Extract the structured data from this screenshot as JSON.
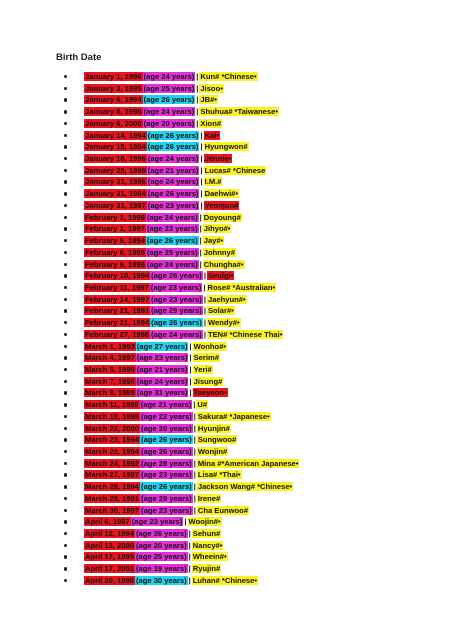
{
  "heading": "Birth Date",
  "colors": {
    "red": "#e8141e",
    "magenta": "#e22fd6",
    "cyan": "#1fd3ee",
    "yellow": "#fbf31f"
  },
  "entries": [
    {
      "date": "January 1, 1996",
      "date_bg": "#e8141e",
      "age": "(age 24 years)",
      "age_bg": "#e22fd6",
      "name": "Kun# *Chinese•",
      "name_bg": "#fbf31f"
    },
    {
      "date": "January 3, 1995",
      "date_bg": "#e8141e",
      "age": "(age 25 years)",
      "age_bg": "#e22fd6",
      "name": "Jisoo•",
      "name_bg": "#fbf31f"
    },
    {
      "date": "January 6, 1994",
      "date_bg": "#e8141e",
      "age": "(age 26 years)",
      "age_bg": "#1fd3ee",
      "name": "JB#•",
      "name_bg": "#fbf31f"
    },
    {
      "date": "January 6, 1996",
      "date_bg": "#e8141e",
      "age": "(age 24 years)",
      "age_bg": "#e22fd6",
      "name": "Shuhua# *Taiwanese•",
      "name_bg": "#fbf31f"
    },
    {
      "date": "January 6, 2000",
      "date_bg": "#e8141e",
      "age": "(age 20 years)",
      "age_bg": "#e22fd6",
      "name": "Xion#",
      "name_bg": "#fbf31f"
    },
    {
      "date": "January 14, 1994",
      "date_bg": "#e8141e",
      "age": "(age 26 years)",
      "age_bg": "#1fd3ee",
      "name": "Kai•",
      "name_bg": "#e8141e"
    },
    {
      "date": "January 15, 1994",
      "date_bg": "#e8141e",
      "age": "(age 26 years)",
      "age_bg": "#1fd3ee",
      "name": "Hyungwon#",
      "name_bg": "#fbf31f"
    },
    {
      "date": "January 16, 1996",
      "date_bg": "#e8141e",
      "age": "(age 24 years)",
      "age_bg": "#e22fd6",
      "name": "Jennie•",
      "name_bg": "#e8141e"
    },
    {
      "date": "January 25, 1999",
      "date_bg": "#e8141e",
      "age": "(age 21 years)",
      "age_bg": "#e22fd6",
      "name": "Lucas# *Chinese",
      "name_bg": "#fbf31f"
    },
    {
      "date": "January 31, 1996",
      "date_bg": "#e8141e",
      "age": "(age 24 years)",
      "age_bg": "#e22fd6",
      "name": "I.M.#",
      "name_bg": "#fbf31f"
    },
    {
      "date": "January 31, 1994",
      "date_bg": "#e8141e",
      "age": "(age 26 years)",
      "age_bg": "#e22fd6",
      "name": "Daehwi#•",
      "name_bg": "#fbf31f"
    },
    {
      "date": "January 31, 1997",
      "date_bg": "#e8141e",
      "age": "(age 23 years)",
      "age_bg": "#e22fd6",
      "name": "Yeonjun#",
      "name_bg": "#e8141e"
    },
    {
      "date": "February 1, 1996",
      "date_bg": "#e8141e",
      "age": "(age 24 years)",
      "age_bg": "#e22fd6",
      "name": "Doyoung#",
      "name_bg": "#fbf31f"
    },
    {
      "date": "February 1, 1997",
      "date_bg": "#e8141e",
      "age": "(age 23 years)",
      "age_bg": "#e22fd6",
      "name": "Jihyo#•",
      "name_bg": "#fbf31f"
    },
    {
      "date": "February 6, 1994",
      "date_bg": "#e8141e",
      "age": "(age 26 years)",
      "age_bg": "#1fd3ee",
      "name": "Jay#•",
      "name_bg": "#fbf31f"
    },
    {
      "date": "February 6, 1995",
      "date_bg": "#e8141e",
      "age": "(age 25 years)",
      "age_bg": "#e22fd6",
      "name": "Johnny#",
      "name_bg": "#fbf31f"
    },
    {
      "date": "February 9, 1996",
      "date_bg": "#e8141e",
      "age": "(age 24 years)",
      "age_bg": "#e22fd6",
      "name": "Chungha#•",
      "name_bg": "#fbf31f"
    },
    {
      "date": "February 10, 1994",
      "date_bg": "#e8141e",
      "age": "(age 26 years)",
      "age_bg": "#e22fd6",
      "name": "Seulgi•",
      "name_bg": "#e8141e"
    },
    {
      "date": "February 11, 1997",
      "date_bg": "#e8141e",
      "age": "(age 23 years)",
      "age_bg": "#e22fd6",
      "name": "Rose# *Australian•",
      "name_bg": "#fbf31f"
    },
    {
      "date": "February 14, 1997",
      "date_bg": "#e8141e",
      "age": "(age 23 years)",
      "age_bg": "#e22fd6",
      "name": "Jaehyun#•",
      "name_bg": "#fbf31f"
    },
    {
      "date": "February 21, 1991",
      "date_bg": "#e8141e",
      "age": "(age 29 years)",
      "age_bg": "#e22fd6",
      "name": "Solar#•",
      "name_bg": "#fbf31f"
    },
    {
      "date": "February 21, 1994",
      "date_bg": "#e8141e",
      "age": "(age 26 years)",
      "age_bg": "#1fd3ee",
      "name": "Wendy#•",
      "name_bg": "#fbf31f"
    },
    {
      "date": "February 27, 1996",
      "date_bg": "#e8141e",
      "age": "(age 24 years)",
      "age_bg": "#e22fd6",
      "name": "TEN# *Chinese Thai•",
      "name_bg": "#fbf31f"
    },
    {
      "date": "March 1, 1993",
      "date_bg": "#e8141e",
      "age": "(age 27 years)",
      "age_bg": "#1fd3ee",
      "name": "Wonho#•",
      "name_bg": "#fbf31f"
    },
    {
      "date": "March 4, 1997",
      "date_bg": "#e8141e",
      "age": "(age 23 years)",
      "age_bg": "#e22fd6",
      "name": "Serim#",
      "name_bg": "#fbf31f"
    },
    {
      "date": "March 5, 1999",
      "date_bg": "#e8141e",
      "age": "(age 21 years)",
      "age_bg": "#e22fd6",
      "name": "Yeri#",
      "name_bg": "#fbf31f"
    },
    {
      "date": "March 7, 1996",
      "date_bg": "#e8141e",
      "age": "(age 24 years)",
      "age_bg": "#e22fd6",
      "name": "Jisung#",
      "name_bg": "#fbf31f"
    },
    {
      "date": "March 9, 1989",
      "date_bg": "#e8141e",
      "age": "(age 31 years)",
      "age_bg": "#e22fd6",
      "name": "Taeyeon•",
      "name_bg": "#e8141e"
    },
    {
      "date": "March 11, 1999",
      "date_bg": "#e8141e",
      "age": "(age 21 years)",
      "age_bg": "#e22fd6",
      "name": "U#",
      "name_bg": "#fbf31f"
    },
    {
      "date": "March 19, 1998",
      "date_bg": "#e8141e",
      "age": "(age 22 years)",
      "age_bg": "#e22fd6",
      "name": "Sakura# *Japanese•",
      "name_bg": "#fbf31f"
    },
    {
      "date": "March 22, 2000",
      "date_bg": "#e8141e",
      "age": "(age 20 years)",
      "age_bg": "#e22fd6",
      "name": "Hyunjin#",
      "name_bg": "#fbf31f"
    },
    {
      "date": "March 23, 1994",
      "date_bg": "#e8141e",
      "age": "(age 26 years)",
      "age_bg": "#1fd3ee",
      "name": "Sungwoo#",
      "name_bg": "#fbf31f"
    },
    {
      "date": "March 22, 1994",
      "date_bg": "#e8141e",
      "age": "(age 26 years)",
      "age_bg": "#e22fd6",
      "name": "Wonjin#",
      "name_bg": "#fbf31f"
    },
    {
      "date": "March 24, 1992",
      "date_bg": "#e8141e",
      "age": "(age 28 years)",
      "age_bg": "#e22fd6",
      "name": "Mina #*American Japanese•",
      "name_bg": "#fbf31f"
    },
    {
      "date": "March 27, 1997",
      "date_bg": "#e8141e",
      "age": "(age 23 years)",
      "age_bg": "#e22fd6",
      "name": "Lisa# *Thai•",
      "name_bg": "#fbf31f"
    },
    {
      "date": "March 28, 1994",
      "date_bg": "#e8141e",
      "age": "(age 26 years)",
      "age_bg": "#1fd3ee",
      "name": "Jackson Wang# *Chinese•",
      "name_bg": "#fbf31f"
    },
    {
      "date": "March 29, 1991",
      "date_bg": "#e8141e",
      "age": "(age 29 years)",
      "age_bg": "#e22fd6",
      "name": "Irene#",
      "name_bg": "#fbf31f"
    },
    {
      "date": "March 30, 1997",
      "date_bg": "#e8141e",
      "age": "(age 23 years)",
      "age_bg": "#e22fd6",
      "name": "Cha Eunwoo#",
      "name_bg": "#fbf31f"
    },
    {
      "date": "April 6, 1997",
      "date_bg": "#e8141e",
      "age": "(age 23 years)",
      "age_bg": "#e22fd6",
      "name": "Woojin#•",
      "name_bg": "#fbf31f"
    },
    {
      "date": "April 12, 1994",
      "date_bg": "#e8141e",
      "age": "(age 26 years)",
      "age_bg": "#e22fd6",
      "name": "Sehun#",
      "name_bg": "#fbf31f"
    },
    {
      "date": "April 13, 2000",
      "date_bg": "#e8141e",
      "age": "(age 20 years)",
      "age_bg": "#e22fd6",
      "name": "Nancy#•",
      "name_bg": "#fbf31f"
    },
    {
      "date": "April 17, 1995",
      "date_bg": "#e8141e",
      "age": "(age 25 years)",
      "age_bg": "#e22fd6",
      "name": "Wheein#•",
      "name_bg": "#fbf31f"
    },
    {
      "date": "April 17, 2001",
      "date_bg": "#e8141e",
      "age": "(age 19 years)",
      "age_bg": "#e22fd6",
      "name": "Ryujin#",
      "name_bg": "#fbf31f"
    },
    {
      "date": "April 20, 1990",
      "date_bg": "#e8141e",
      "age": "(age 30 years)",
      "age_bg": "#1fd3ee",
      "name": "Luhan# *Chinese•",
      "name_bg": "#fbf31f"
    }
  ]
}
